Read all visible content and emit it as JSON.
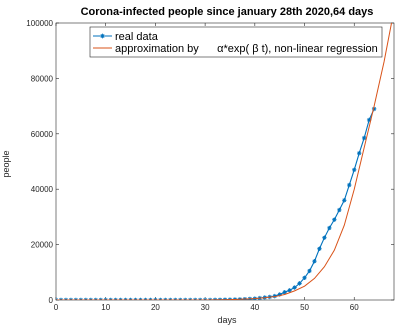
{
  "chart_data": {
    "type": "line",
    "title": "Corona-infected people since january 28th 2020,64 days",
    "xlabel": "days",
    "ylabel": "people",
    "xlim": [
      0,
      68
    ],
    "ylim": [
      0,
      100000
    ],
    "xticks": [
      0,
      10,
      20,
      30,
      40,
      50,
      60
    ],
    "yticks": [
      0,
      20000,
      40000,
      60000,
      80000,
      100000
    ],
    "xtick_labels": [
      "0",
      "10",
      "20",
      "30",
      "40",
      "50",
      "60"
    ],
    "ytick_labels": [
      "0",
      "20000",
      "40000",
      "60000",
      "80000",
      "100000"
    ],
    "grid": false,
    "legend": {
      "position": "top-left",
      "entries": [
        "real data",
        "approximation by      α*exp( β t), non-linear regression"
      ]
    },
    "series": [
      {
        "name": "real data",
        "color": "#0072bd",
        "marker": "star",
        "x": [
          0,
          1,
          2,
          3,
          4,
          5,
          6,
          7,
          8,
          9,
          10,
          11,
          12,
          13,
          14,
          15,
          16,
          17,
          18,
          19,
          20,
          21,
          22,
          23,
          24,
          25,
          26,
          27,
          28,
          29,
          30,
          31,
          32,
          33,
          34,
          35,
          36,
          37,
          38,
          39,
          40,
          41,
          42,
          43,
          44,
          45,
          46,
          47,
          48,
          49,
          50,
          51,
          52,
          53,
          54,
          55,
          56,
          57,
          58,
          59,
          60,
          61,
          62,
          63,
          64
        ],
        "y": [
          0,
          0,
          0,
          0,
          0,
          0,
          0,
          0,
          0,
          0,
          0,
          0,
          0,
          0,
          0,
          0,
          0,
          0,
          0,
          0,
          0,
          0,
          0,
          0,
          0,
          0,
          0,
          0,
          0,
          0,
          0,
          0,
          50,
          80,
          120,
          160,
          200,
          250,
          300,
          400,
          500,
          700,
          900,
          1100,
          1400,
          2000,
          2800,
          3500,
          4500,
          6000,
          8000,
          10500,
          14000,
          18500,
          22500,
          26000,
          29000,
          32500,
          36000,
          41500,
          47000,
          53000,
          58500,
          65000,
          69000
        ]
      },
      {
        "name": "approximation by      α*exp( β t), non-linear regression",
        "color": "#d95319",
        "marker": "none",
        "x": [
          0,
          2,
          4,
          6,
          8,
          10,
          12,
          14,
          16,
          18,
          20,
          22,
          24,
          26,
          28,
          30,
          32,
          34,
          36,
          38,
          40,
          42,
          44,
          46,
          48,
          50,
          52,
          54,
          56,
          58,
          60,
          62,
          64,
          66,
          67.5
        ],
        "y": [
          0,
          0,
          0,
          0,
          0,
          0,
          0,
          0,
          0,
          0,
          0,
          0,
          0,
          0,
          0,
          0,
          50,
          100,
          200,
          350,
          500,
          800,
          1200,
          2000,
          3300,
          5000,
          7800,
          12000,
          18000,
          27000,
          40000,
          55000,
          70000,
          86000,
          100000
        ]
      }
    ]
  }
}
